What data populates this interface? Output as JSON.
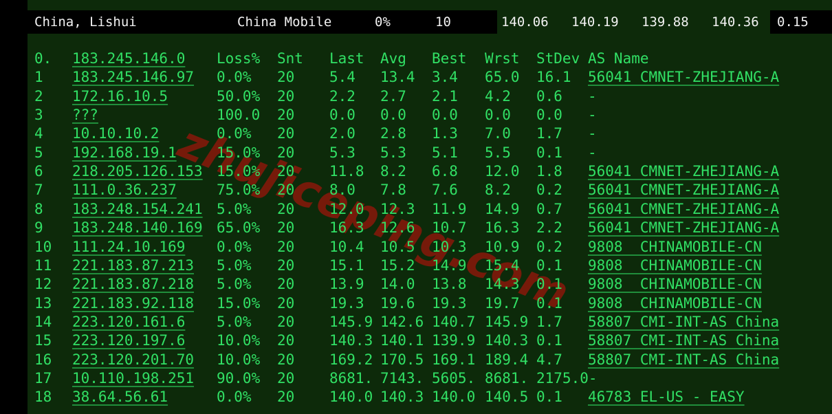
{
  "summary_bar": {
    "location": "China, Lishui",
    "provider": "China Mobile",
    "loss": "0%",
    "sent": "10",
    "avg_values": [
      "140.06",
      "140.19",
      "139.88",
      "140.36"
    ],
    "stdev": "0.15"
  },
  "table": {
    "header": {
      "hop": "0.",
      "ip": "183.245.146.0",
      "loss": "Loss%",
      "snt": "Snt",
      "last": "Last",
      "avg": "Avg",
      "best": "Best",
      "wrst": "Wrst",
      "stdev": "StDev",
      "asname": "AS Name"
    },
    "rows": [
      {
        "hop": "1",
        "ip": "183.245.146.97",
        "loss": "0.0%",
        "snt": "20",
        "last": "5.4",
        "avg": "13.4",
        "best": "3.4",
        "wrst": "65.0",
        "stdev": "16.1",
        "asname": "56041 CMNET-ZHEJIANG-A",
        "as_link": true
      },
      {
        "hop": "2",
        "ip": "172.16.10.5",
        "loss": "50.0%",
        "snt": "20",
        "last": "2.2",
        "avg": "2.7",
        "best": "2.1",
        "wrst": "4.2",
        "stdev": "0.6",
        "asname": "-",
        "as_link": false
      },
      {
        "hop": "3",
        "ip": "???",
        "loss": "100.0",
        "snt": "20",
        "last": "0.0",
        "avg": "0.0",
        "best": "0.0",
        "wrst": "0.0",
        "stdev": "0.0",
        "asname": "-",
        "as_link": false
      },
      {
        "hop": "4",
        "ip": "10.10.10.2",
        "loss": "0.0%",
        "snt": "20",
        "last": "2.0",
        "avg": "2.8",
        "best": "1.3",
        "wrst": "7.0",
        "stdev": "1.7",
        "asname": "-",
        "as_link": false
      },
      {
        "hop": "5",
        "ip": "192.168.19.1",
        "loss": "15.0%",
        "snt": "20",
        "last": "5.3",
        "avg": "5.3",
        "best": "5.1",
        "wrst": "5.5",
        "stdev": "0.1",
        "asname": "-",
        "as_link": false
      },
      {
        "hop": "6",
        "ip": "218.205.126.153",
        "loss": "15.0%",
        "snt": "20",
        "last": "11.8",
        "avg": "8.2",
        "best": "6.8",
        "wrst": "12.0",
        "stdev": "1.8",
        "asname": "56041 CMNET-ZHEJIANG-A",
        "as_link": true
      },
      {
        "hop": "7",
        "ip": "111.0.36.237",
        "loss": "75.0%",
        "snt": "20",
        "last": "8.0",
        "avg": "7.8",
        "best": "7.6",
        "wrst": "8.2",
        "stdev": "0.2",
        "asname": "56041 CMNET-ZHEJIANG-A",
        "as_link": true
      },
      {
        "hop": "8",
        "ip": "183.248.154.241",
        "loss": "5.0%",
        "snt": "20",
        "last": "12.0",
        "avg": "12.3",
        "best": "11.9",
        "wrst": "14.9",
        "stdev": "0.7",
        "asname": "56041 CMNET-ZHEJIANG-A",
        "as_link": true
      },
      {
        "hop": "9",
        "ip": "183.248.140.169",
        "loss": "65.0%",
        "snt": "20",
        "last": "16.3",
        "avg": "12.6",
        "best": "10.7",
        "wrst": "16.3",
        "stdev": "2.2",
        "asname": "56041 CMNET-ZHEJIANG-A",
        "as_link": true
      },
      {
        "hop": "10",
        "ip": "111.24.10.169",
        "loss": "0.0%",
        "snt": "20",
        "last": "10.4",
        "avg": "10.5",
        "best": "10.3",
        "wrst": "10.9",
        "stdev": "0.2",
        "asname": "9808  CHINAMOBILE-CN",
        "as_link": true
      },
      {
        "hop": "11",
        "ip": "221.183.87.213",
        "loss": "5.0%",
        "snt": "20",
        "last": "15.1",
        "avg": "15.2",
        "best": "14.9",
        "wrst": "15.4",
        "stdev": "0.1",
        "asname": "9808  CHINAMOBILE-CN",
        "as_link": true
      },
      {
        "hop": "12",
        "ip": "221.183.87.218",
        "loss": "5.0%",
        "snt": "20",
        "last": "13.9",
        "avg": "14.0",
        "best": "13.8",
        "wrst": "14.3",
        "stdev": "0.1",
        "asname": "9808  CHINAMOBILE-CN",
        "as_link": true
      },
      {
        "hop": "13",
        "ip": "221.183.92.118",
        "loss": "15.0%",
        "snt": "20",
        "last": "19.3",
        "avg": "19.6",
        "best": "19.3",
        "wrst": "19.7",
        "stdev": "0.1",
        "asname": "9808  CHINAMOBILE-CN",
        "as_link": true
      },
      {
        "hop": "14",
        "ip": "223.120.161.6",
        "loss": "5.0%",
        "snt": "20",
        "last": "145.9",
        "avg": "142.6",
        "best": "140.7",
        "wrst": "145.9",
        "stdev": "1.7",
        "asname": "58807 CMI-INT-AS China",
        "as_link": true
      },
      {
        "hop": "15",
        "ip": "223.120.197.6",
        "loss": "10.0%",
        "snt": "20",
        "last": "140.3",
        "avg": "140.1",
        "best": "139.9",
        "wrst": "140.3",
        "stdev": "0.1",
        "asname": "58807 CMI-INT-AS China",
        "as_link": true
      },
      {
        "hop": "16",
        "ip": "223.120.201.70",
        "loss": "10.0%",
        "snt": "20",
        "last": "169.2",
        "avg": "170.5",
        "best": "169.1",
        "wrst": "189.4",
        "stdev": "4.7",
        "asname": "58807 CMI-INT-AS China",
        "as_link": true
      },
      {
        "hop": "17",
        "ip": "10.110.198.251",
        "loss": "90.0%",
        "snt": "20",
        "last": "8681.",
        "avg": "7143.",
        "best": "5605.",
        "wrst": "8681.",
        "stdev": "2175.0-",
        "asname": "",
        "as_link": false
      },
      {
        "hop": "18",
        "ip": "38.64.56.61",
        "loss": "0.0%",
        "snt": "20",
        "last": "140.0",
        "avg": "140.3",
        "best": "140.0",
        "wrst": "140.5",
        "stdev": "0.1",
        "asname": "46783 EL-US - EASY",
        "as_link": true
      }
    ]
  },
  "watermark": {
    "text": "zhujiceping.com"
  },
  "colors": {
    "bg": "#0d2a0a",
    "fg": "#31e065",
    "white": "#f2f2f2",
    "black": "#000000",
    "watermark": "#7c1a0b"
  }
}
